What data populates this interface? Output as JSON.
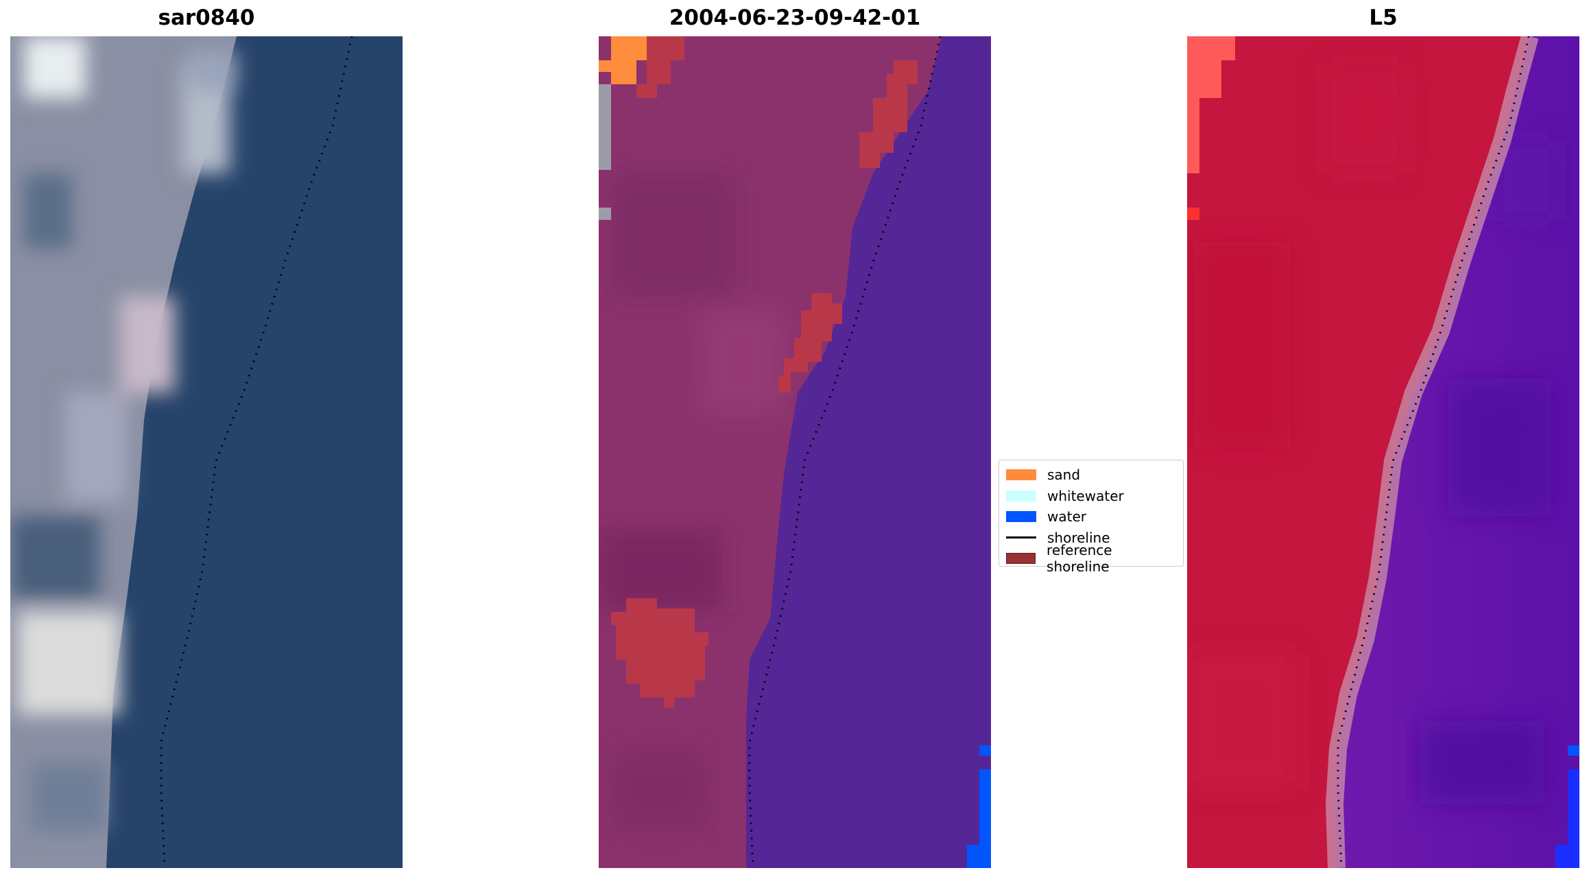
{
  "panels": [
    {
      "title": "sar0840"
    },
    {
      "title": "2004-06-23-09-42-01"
    },
    {
      "title": "L5"
    }
  ],
  "legend": {
    "items": [
      {
        "label": "sand",
        "color": "#ff8c3c",
        "kind": "patch"
      },
      {
        "label": "whitewater",
        "color": "#ccffff",
        "kind": "patch"
      },
      {
        "label": "water",
        "color": "#0055ff",
        "kind": "patch"
      },
      {
        "label": "shoreline",
        "color": "#000000",
        "kind": "line"
      },
      {
        "label": "reference shoreline",
        "color": "#993333",
        "kind": "patch"
      }
    ]
  }
}
